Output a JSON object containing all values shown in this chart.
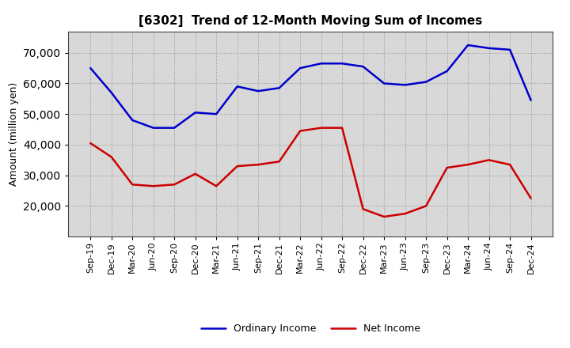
{
  "title": "[6302]  Trend of 12-Month Moving Sum of Incomes",
  "ylabel": "Amount (million yen)",
  "background_color": "#ffffff",
  "grid_color": "#888888",
  "plot_bg_color": "#d8d8d8",
  "ordinary_income_color": "#0000cc",
  "net_income_color": "#cc0000",
  "ordinary_income_label": "Ordinary Income",
  "net_income_label": "Net Income",
  "x_labels": [
    "Sep-19",
    "Dec-19",
    "Mar-20",
    "Jun-20",
    "Sep-20",
    "Dec-20",
    "Mar-21",
    "Jun-21",
    "Sep-21",
    "Dec-21",
    "Mar-22",
    "Jun-22",
    "Sep-22",
    "Dec-22",
    "Mar-23",
    "Jun-23",
    "Sep-23",
    "Dec-23",
    "Mar-24",
    "Jun-24",
    "Sep-24",
    "Dec-24"
  ],
  "ordinary_income": [
    65000,
    57000,
    48000,
    45500,
    45500,
    50500,
    50000,
    59000,
    57500,
    58500,
    65000,
    66500,
    66500,
    65500,
    60000,
    59500,
    60500,
    64000,
    72500,
    71500,
    71000,
    54500
  ],
  "net_income": [
    40500,
    36000,
    27000,
    26500,
    27000,
    30500,
    26500,
    33000,
    33500,
    34500,
    44500,
    45500,
    45500,
    19000,
    16500,
    17500,
    20000,
    32500,
    33500,
    35000,
    33500,
    22500
  ],
  "ylim": [
    10000,
    77000
  ],
  "yticks": [
    20000,
    30000,
    40000,
    50000,
    60000,
    70000
  ],
  "line_width": 1.8,
  "title_fontsize": 11,
  "tick_fontsize": 8,
  "ylabel_fontsize": 9,
  "legend_fontsize": 9
}
